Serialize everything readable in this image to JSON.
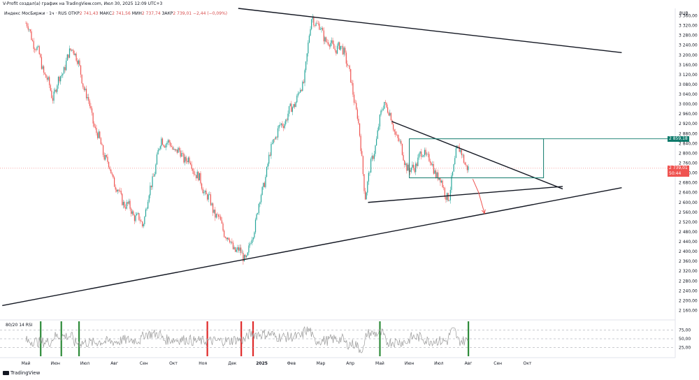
{
  "header": {
    "attribution": "V-Profit создал(а) график на TradingView.com, Июл 30, 2025 12:09 UTC+3"
  },
  "legend": {
    "symbol": "Индекс МосБиржи · 1ч · RUS",
    "open_label": "ОТКР",
    "open": "2 741,43",
    "high_label": "МАКС",
    "high": "2 741,56",
    "low_label": "МИН",
    "low": "2 737,74",
    "close_label": "ЗАКР",
    "close": "2 739,01",
    "change": "−2,44 (−0,09%)"
  },
  "currency": "RUB",
  "colors": {
    "up": "#26a69a",
    "down": "#ef5350",
    "box": "#0e7a6b",
    "price_badge": "#ef5350",
    "box_badge": "#0e7a6b",
    "rsi_line": "#9a9a9a"
  },
  "price_badges": {
    "box_top": "2 859,18",
    "last_price": "2 739,01",
    "last_sub": "50:44"
  },
  "rsi": {
    "label": "80/20 14 RSI",
    "levels": [
      "75,00",
      "50,00",
      "25,00"
    ]
  },
  "brand": "TradingView",
  "chart_data": {
    "type": "candlestick",
    "y_axis": {
      "ticks": [
        "3 360,00",
        "3 320,00",
        "3 280,00",
        "3 240,00",
        "3 200,00",
        "3 160,00",
        "3 120,00",
        "3 080,00",
        "3 040,00",
        "3 000,00",
        "2 960,00",
        "2 920,00",
        "2 880,00",
        "2 840,00",
        "2 800,00",
        "2 760,00",
        "2 720,00",
        "2 680,00",
        "2 640,00",
        "2 600,00",
        "2 560,00",
        "2 520,00",
        "2 480,00",
        "2 440,00",
        "2 400,00",
        "2 360,00",
        "2 320,00",
        "2 280,00",
        "2 240,00",
        "2 200,00",
        "2 160,00"
      ],
      "tick_values": [
        3360,
        3320,
        3280,
        3240,
        3200,
        3160,
        3120,
        3080,
        3040,
        3000,
        2960,
        2920,
        2880,
        2840,
        2800,
        2760,
        2720,
        2680,
        2640,
        2600,
        2560,
        2520,
        2480,
        2440,
        2400,
        2360,
        2320,
        2280,
        2240,
        2200,
        2160
      ],
      "range": [
        2130,
        3390
      ]
    },
    "x_axis": {
      "ticks": [
        "Май",
        "Июн",
        "Июл",
        "Авг",
        "Сен",
        "Окт",
        "Ноя",
        "Дек",
        "2025",
        "Фев",
        "Мар",
        "Апр",
        "Май",
        "Июн",
        "Июл",
        "Авг",
        "Сен",
        "Окт"
      ],
      "tick_index": [
        0,
        1,
        2,
        3,
        4,
        5,
        6,
        7,
        8,
        9,
        10,
        11,
        12,
        13,
        14,
        15,
        16,
        17
      ]
    },
    "path_anchors": [
      {
        "t": 0.0,
        "v": 3330
      },
      {
        "t": 0.35,
        "v": 3230
      },
      {
        "t": 0.9,
        "v": 3030
      },
      {
        "t": 1.6,
        "v": 3240
      },
      {
        "t": 2.4,
        "v": 2880
      },
      {
        "t": 3.2,
        "v": 2620
      },
      {
        "t": 3.95,
        "v": 2510
      },
      {
        "t": 4.6,
        "v": 2860
      },
      {
        "t": 5.6,
        "v": 2760
      },
      {
        "t": 6.4,
        "v": 2560
      },
      {
        "t": 7.0,
        "v": 2420
      },
      {
        "t": 7.5,
        "v": 2370
      },
      {
        "t": 8.4,
        "v": 2860
      },
      {
        "t": 9.0,
        "v": 2980
      },
      {
        "t": 9.4,
        "v": 3080
      },
      {
        "t": 9.7,
        "v": 3360
      },
      {
        "t": 10.3,
        "v": 3240
      },
      {
        "t": 10.8,
        "v": 3220
      },
      {
        "t": 11.25,
        "v": 2950
      },
      {
        "t": 11.5,
        "v": 2630
      },
      {
        "t": 12.15,
        "v": 3020
      },
      {
        "t": 12.6,
        "v": 2860
      },
      {
        "t": 13.0,
        "v": 2720
      },
      {
        "t": 13.5,
        "v": 2810
      },
      {
        "t": 14.0,
        "v": 2700
      },
      {
        "t": 14.35,
        "v": 2610
      },
      {
        "t": 14.6,
        "v": 2830
      },
      {
        "t": 15.0,
        "v": 2739
      }
    ],
    "trendlines": [
      {
        "from": {
          "t": 7.2,
          "v": 3390
        },
        "to": {
          "t": 20.2,
          "v": 3210
        }
      },
      {
        "from": {
          "t": -0.8,
          "v": 2180
        },
        "to": {
          "t": 20.2,
          "v": 2660
        }
      },
      {
        "from": {
          "t": 11.6,
          "v": 2600
        },
        "to": {
          "t": 18.2,
          "v": 2665
        }
      },
      {
        "from": {
          "t": 12.4,
          "v": 2930
        },
        "to": {
          "t": 18.2,
          "v": 2655
        }
      }
    ],
    "box": {
      "t1": 13.0,
      "t2": 17.55,
      "v_top": 2859,
      "v_bottom": 2700
    },
    "projection": [
      {
        "t": 15.15,
        "v": 2695
      },
      {
        "t": 15.35,
        "v": 2640
      },
      {
        "t": 15.55,
        "v": 2555
      }
    ],
    "rsi_highlights": [
      {
        "t": 0.5,
        "color": "green"
      },
      {
        "t": 1.2,
        "color": "green"
      },
      {
        "t": 1.8,
        "color": "green"
      },
      {
        "t": 6.15,
        "color": "red"
      },
      {
        "t": 7.3,
        "color": "red"
      },
      {
        "t": 7.7,
        "color": "red"
      },
      {
        "t": 12.0,
        "color": "green"
      },
      {
        "t": 15.0,
        "color": "green"
      }
    ]
  }
}
